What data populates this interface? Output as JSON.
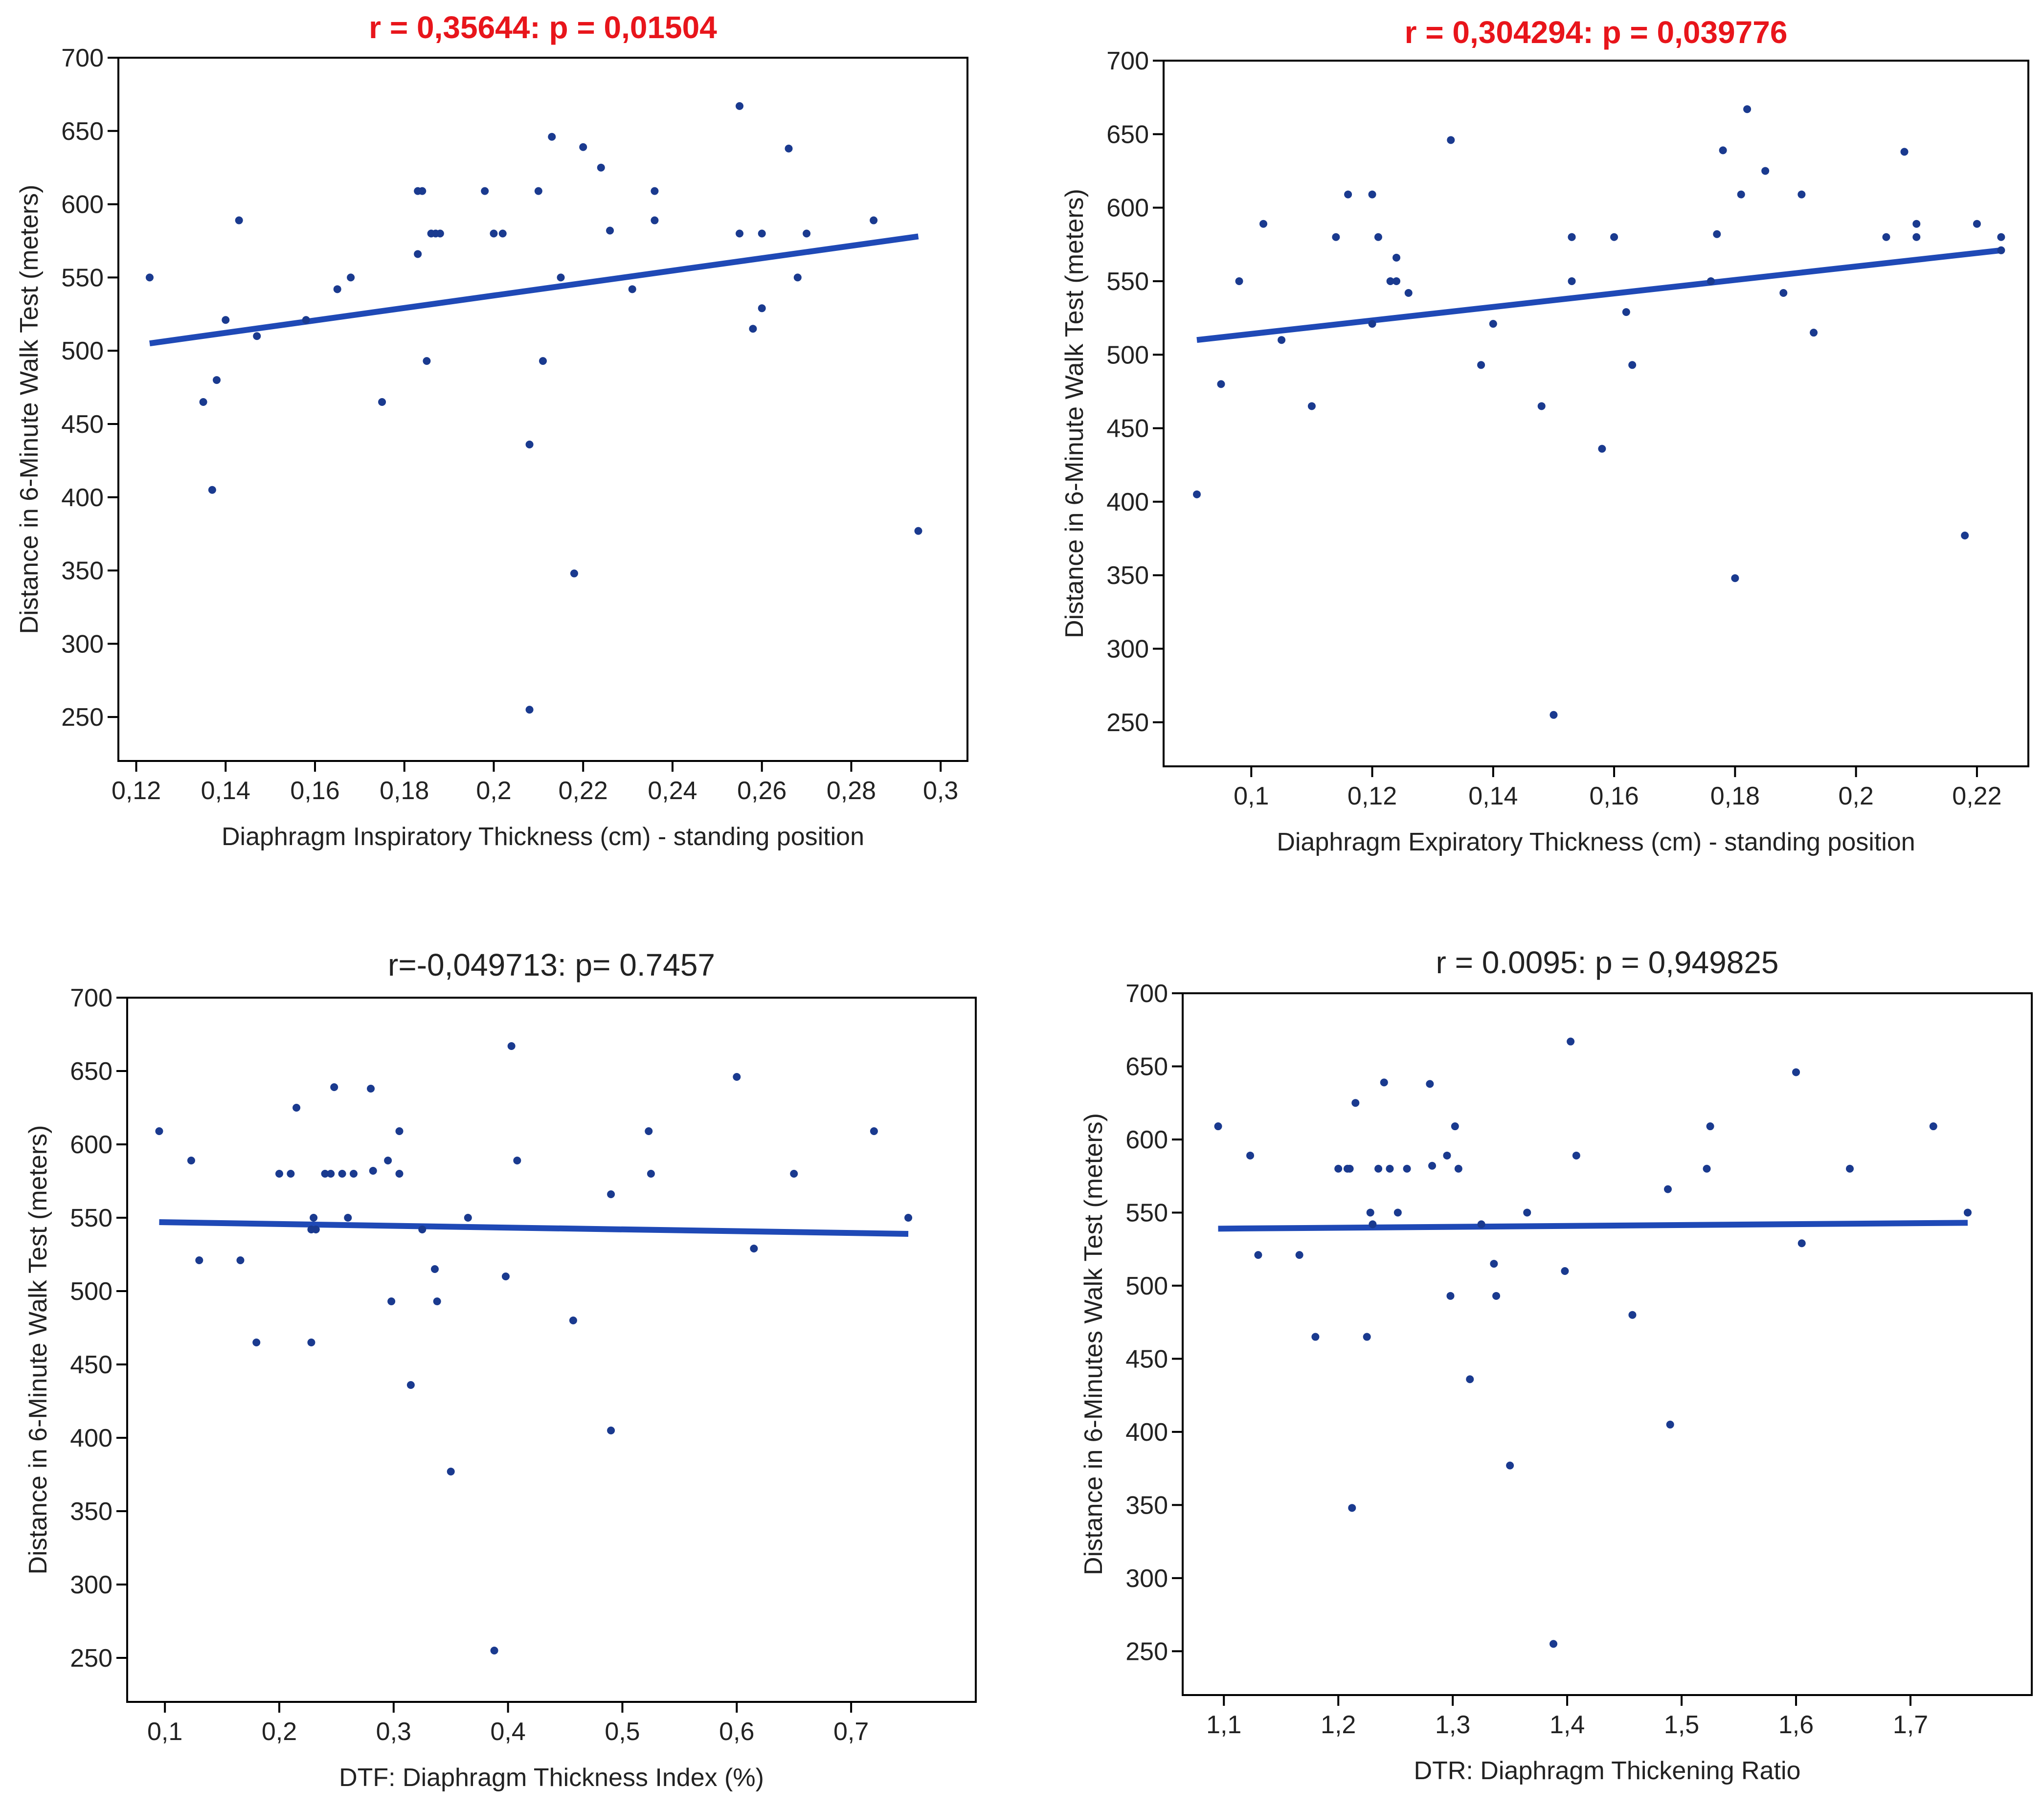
{
  "colors": {
    "point": "#1a3a8f",
    "fit": "#1f49b6",
    "title_sig": "#e8151b",
    "title_ns": "#222222"
  },
  "chart_data": [
    {
      "type": "scatter",
      "title": "r = 0,35644: p = 0,01504",
      "title_color": "#e8151b",
      "xlabel": "Diaphragm Inspiratory Thickness (cm) - standing position",
      "ylabel": "Distance in 6-Minute Walk Test (meters)",
      "xlim": [
        0.116,
        0.306
      ],
      "ylim": [
        220,
        700
      ],
      "xticks": [
        0.12,
        0.14,
        0.16,
        0.18,
        0.2,
        0.22,
        0.24,
        0.26,
        0.28,
        0.3
      ],
      "xtick_labels": [
        "0,12",
        "0,14",
        "0,16",
        "0,18",
        "0,2",
        "0,22",
        "0,24",
        "0,26",
        "0,28",
        "0,3"
      ],
      "yticks": [
        250,
        300,
        350,
        400,
        450,
        500,
        550,
        600,
        650,
        700
      ],
      "ytick_labels": [
        "250",
        "300",
        "350",
        "400",
        "450",
        "500",
        "550",
        "600",
        "650",
        "700"
      ],
      "fit": {
        "x": [
          0.123,
          0.295
        ],
        "y": [
          505,
          578
        ]
      },
      "x": [
        0.123,
        0.135,
        0.137,
        0.138,
        0.14,
        0.143,
        0.147,
        0.158,
        0.165,
        0.168,
        0.175,
        0.183,
        0.184,
        0.185,
        0.186,
        0.187,
        0.188,
        0.183,
        0.198,
        0.2,
        0.202,
        0.21,
        0.213,
        0.215,
        0.208,
        0.211,
        0.208,
        0.22,
        0.224,
        0.226,
        0.218,
        0.231,
        0.236,
        0.236,
        0.255,
        0.255,
        0.26,
        0.26,
        0.27,
        0.266,
        0.258,
        0.268,
        0.285,
        0.295
      ],
      "y": [
        550,
        465,
        405,
        480,
        521,
        589,
        510,
        521,
        542,
        550,
        465,
        566,
        609,
        493,
        580,
        580,
        580,
        609,
        609,
        580,
        580,
        609,
        646,
        550,
        436,
        493,
        255,
        639,
        625,
        582,
        348,
        542,
        609,
        589,
        667,
        580,
        580,
        529,
        580,
        638,
        515,
        550,
        589,
        377
      ]
    },
    {
      "type": "scatter",
      "title": "r = 0,304294: p = 0,039776",
      "title_color": "#e8151b",
      "xlabel": "Diaphragm Expiratory Thickness (cm) - standing position",
      "ylabel": "Distance in 6-Minute Walk Test (meters)",
      "xlim": [
        0.0855,
        0.2285
      ],
      "ylim": [
        220,
        700
      ],
      "xticks": [
        0.1,
        0.12,
        0.14,
        0.16,
        0.18,
        0.2,
        0.22
      ],
      "xtick_labels": [
        "0,1",
        "0,12",
        "0,14",
        "0,16",
        "0,18",
        "0,2",
        "0,22"
      ],
      "yticks": [
        250,
        300,
        350,
        400,
        450,
        500,
        550,
        600,
        650,
        700
      ],
      "ytick_labels": [
        "250",
        "300",
        "350",
        "400",
        "450",
        "500",
        "550",
        "600",
        "650",
        "700"
      ],
      "fit": {
        "x": [
          0.091,
          0.224
        ],
        "y": [
          510,
          571
        ]
      },
      "x": [
        0.091,
        0.095,
        0.098,
        0.102,
        0.105,
        0.11,
        0.114,
        0.116,
        0.12,
        0.121,
        0.123,
        0.124,
        0.124,
        0.126,
        0.133,
        0.138,
        0.14,
        0.148,
        0.15,
        0.153,
        0.153,
        0.153,
        0.158,
        0.16,
        0.162,
        0.163,
        0.176,
        0.177,
        0.178,
        0.18,
        0.181,
        0.182,
        0.185,
        0.188,
        0.191,
        0.193,
        0.205,
        0.208,
        0.21,
        0.21,
        0.218,
        0.22,
        0.224,
        0.224,
        0.12
      ],
      "y": [
        405,
        480,
        550,
        589,
        510,
        465,
        580,
        609,
        609,
        580,
        550,
        566,
        550,
        542,
        646,
        493,
        521,
        465,
        255,
        580,
        580,
        550,
        436,
        580,
        529,
        493,
        550,
        582,
        639,
        348,
        609,
        667,
        625,
        542,
        609,
        515,
        580,
        638,
        589,
        580,
        377,
        589,
        580,
        571,
        521
      ]
    },
    {
      "type": "scatter",
      "title": "r=-0,049713: p= 0.7457",
      "title_color": "#222222",
      "xlabel": "DTF: Diaphragm Thickness Index (%)",
      "ylabel": "Distance in 6-Minute Walk Test (meters)",
      "xlim": [
        0.067,
        0.809
      ],
      "ylim": [
        220,
        700
      ],
      "xticks": [
        0.1,
        0.2,
        0.3,
        0.4,
        0.5,
        0.6,
        0.7
      ],
      "xtick_labels": [
        "0,1",
        "0,2",
        "0,3",
        "0,4",
        "0,5",
        "0,6",
        "0,7"
      ],
      "yticks": [
        250,
        300,
        350,
        400,
        450,
        500,
        550,
        600,
        650,
        700
      ],
      "ytick_labels": [
        "250",
        "300",
        "350",
        "400",
        "450",
        "500",
        "550",
        "600",
        "650",
        "700"
      ],
      "fit": {
        "x": [
          0.095,
          0.75
        ],
        "y": [
          547,
          539
        ]
      },
      "x": [
        0.095,
        0.123,
        0.13,
        0.166,
        0.18,
        0.2,
        0.21,
        0.215,
        0.228,
        0.23,
        0.232,
        0.24,
        0.245,
        0.248,
        0.255,
        0.26,
        0.28,
        0.282,
        0.295,
        0.298,
        0.305,
        0.305,
        0.315,
        0.325,
        0.336,
        0.338,
        0.35,
        0.365,
        0.388,
        0.398,
        0.403,
        0.408,
        0.457,
        0.49,
        0.49,
        0.523,
        0.525,
        0.6,
        0.615,
        0.65,
        0.72,
        0.75,
        0.228,
        0.265
      ],
      "y": [
        609,
        589,
        521,
        521,
        465,
        580,
        580,
        625,
        465,
        550,
        542,
        580,
        580,
        639,
        580,
        550,
        638,
        582,
        589,
        493,
        609,
        580,
        436,
        542,
        515,
        493,
        377,
        550,
        255,
        510,
        667,
        589,
        480,
        566,
        405,
        609,
        580,
        646,
        529,
        580,
        609,
        550,
        542,
        580
      ]
    },
    {
      "type": "scatter",
      "title": "r = 0.0095: p = 0,949825",
      "title_color": "#222222",
      "xlabel": "DTR: Diaphragm Thickening Ratio",
      "ylabel": "Distance in 6-Minutes Walk Test (meters)",
      "xlim": [
        1.064,
        1.806
      ],
      "ylim": [
        220,
        700
      ],
      "xticks": [
        1.1,
        1.2,
        1.3,
        1.4,
        1.5,
        1.6,
        1.7
      ],
      "xtick_labels": [
        "1,1",
        "1,2",
        "1,3",
        "1,4",
        "1,5",
        "1,6",
        "1,7"
      ],
      "yticks": [
        250,
        300,
        350,
        400,
        450,
        500,
        550,
        600,
        650,
        700
      ],
      "ytick_labels": [
        "250",
        "300",
        "350",
        "400",
        "450",
        "500",
        "550",
        "600",
        "650",
        "700"
      ],
      "fit": {
        "x": [
          1.095,
          1.75
        ],
        "y": [
          539,
          543
        ]
      },
      "x": [
        1.095,
        1.123,
        1.13,
        1.166,
        1.18,
        1.2,
        1.208,
        1.21,
        1.215,
        1.225,
        1.228,
        1.23,
        1.235,
        1.24,
        1.245,
        1.252,
        1.26,
        1.28,
        1.282,
        1.295,
        1.298,
        1.302,
        1.305,
        1.315,
        1.325,
        1.336,
        1.338,
        1.35,
        1.365,
        1.388,
        1.398,
        1.403,
        1.408,
        1.457,
        1.488,
        1.49,
        1.522,
        1.525,
        1.6,
        1.605,
        1.647,
        1.72,
        1.75,
        1.212
      ],
      "y": [
        609,
        589,
        521,
        521,
        465,
        580,
        580,
        580,
        625,
        465,
        550,
        542,
        580,
        639,
        580,
        550,
        580,
        638,
        582,
        589,
        493,
        609,
        580,
        436,
        542,
        515,
        493,
        377,
        550,
        255,
        510,
        667,
        589,
        480,
        566,
        405,
        580,
        609,
        646,
        529,
        580,
        609,
        550,
        348
      ]
    }
  ]
}
